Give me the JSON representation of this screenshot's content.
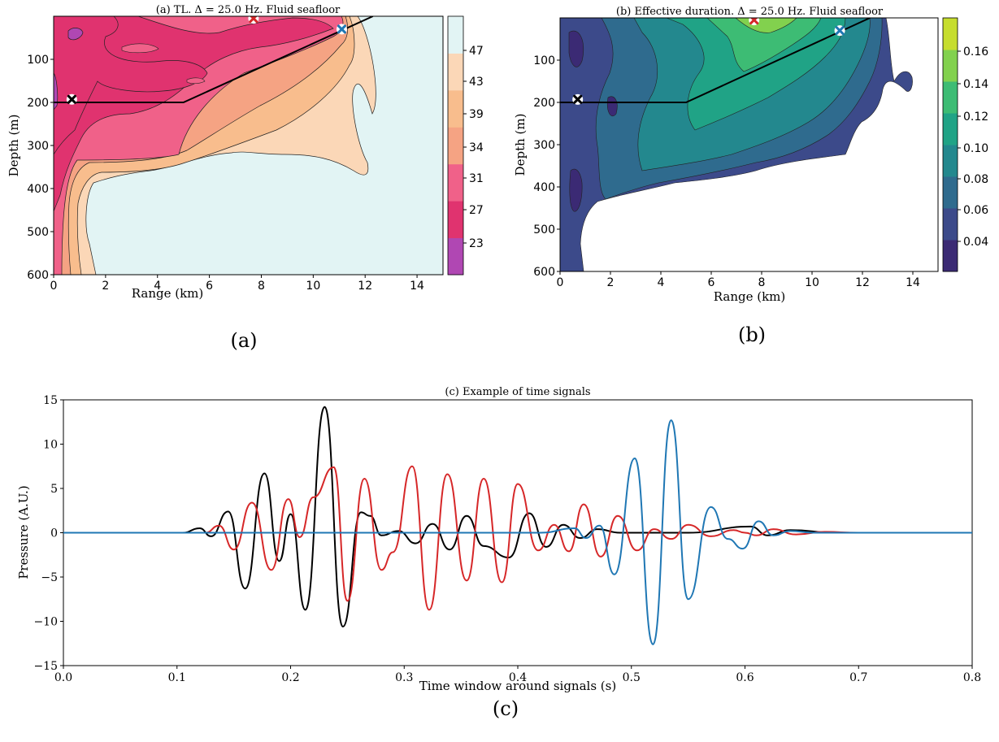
{
  "panels": {
    "a": {
      "title": "(a) TL. Δ = 25.0 Hz. Fluid seafloor",
      "caption": "(a)",
      "colorbar_ticks": [
        "47",
        "43",
        "39",
        "34",
        "31",
        "27",
        "23"
      ]
    },
    "b": {
      "title": "(b) Effective duration. Δ = 25.0 Hz. Fluid seafloor",
      "caption": "(b)",
      "colorbar_ticks": [
        "0.16",
        "0.14",
        "0.12",
        "0.10",
        "0.08",
        "0.06",
        "0.04"
      ]
    },
    "c": {
      "title": "(c) Example of time signals",
      "caption": "(c)"
    }
  },
  "chart_data": [
    {
      "type": "heatmap",
      "title": "(a) TL. Δ = 25.0 Hz. Fluid seafloor",
      "xlabel": "Range (km)",
      "ylabel": "Depth (m)",
      "xlim": [
        0,
        15
      ],
      "ylim": [
        600,
        0
      ],
      "xticks": [
        "0",
        "2",
        "4",
        "6",
        "8",
        "10",
        "12",
        "14"
      ],
      "yticks": [
        "100",
        "200",
        "300",
        "400",
        "500",
        "600"
      ],
      "colorbar": {
        "levels": [
          23,
          27,
          31,
          34,
          39,
          43,
          47
        ],
        "colors": [
          "#b047b3",
          "#e0336f",
          "#f06189",
          "#f5a383",
          "#f8bd8d",
          "#fbd7b7",
          "#e2f4f4"
        ]
      },
      "seafloor": {
        "x": [
          0,
          5,
          12.3
        ],
        "y": [
          200,
          200,
          0
        ]
      },
      "markers": [
        {
          "x": 0.7,
          "y": 193,
          "color": "#000000"
        },
        {
          "x": 7.7,
          "y": 5,
          "color": "#d62728"
        },
        {
          "x": 11.1,
          "y": 30,
          "color": "#1f77b4"
        }
      ]
    },
    {
      "type": "heatmap",
      "title": "(b) Effective duration. Δ = 25.0 Hz. Fluid seafloor",
      "xlabel": "Range (km)",
      "ylabel": "Depth (m)",
      "xlim": [
        0,
        15
      ],
      "ylim": [
        600,
        0
      ],
      "xticks": [
        "0",
        "2",
        "4",
        "6",
        "8",
        "10",
        "12",
        "14"
      ],
      "yticks": [
        "100",
        "200",
        "300",
        "400",
        "500",
        "600"
      ],
      "colorbar": {
        "levels": [
          0.04,
          0.06,
          0.08,
          0.1,
          0.12,
          0.14,
          0.16
        ],
        "colors": [
          "#3b2a74",
          "#3c4a8a",
          "#2f6b8e",
          "#23888e",
          "#20a386",
          "#3dbc74",
          "#82d14e",
          "#c6dd2e"
        ]
      },
      "seafloor": {
        "x": [
          0,
          5,
          12.3
        ],
        "y": [
          200,
          200,
          0
        ]
      },
      "markers": [
        {
          "x": 0.7,
          "y": 193,
          "color": "#000000"
        },
        {
          "x": 7.7,
          "y": 5,
          "color": "#d62728"
        },
        {
          "x": 11.1,
          "y": 30,
          "color": "#1f77b4"
        }
      ]
    },
    {
      "type": "line",
      "title": "(c) Example of time signals",
      "xlabel": "Time window around signals (s)",
      "ylabel": "Pressure (A.U.)",
      "xlim": [
        0,
        0.8
      ],
      "ylim": [
        -15,
        15
      ],
      "xticks": [
        "0.0",
        "0.1",
        "0.2",
        "0.3",
        "0.4",
        "0.5",
        "0.6",
        "0.7",
        "0.8"
      ],
      "yticks": [
        "15",
        "10",
        "5",
        "0",
        "−5",
        "−10",
        "−15"
      ],
      "series": [
        {
          "color": "#000000",
          "peaks": [
            [
              0.105,
              0
            ],
            [
              0.12,
              0.5
            ],
            [
              0.13,
              -0.4
            ],
            [
              0.145,
              2.4
            ],
            [
              0.16,
              -6.3
            ],
            [
              0.177,
              6.7
            ],
            [
              0.19,
              -3.2
            ],
            [
              0.2,
              2.1
            ],
            [
              0.213,
              -8.7
            ],
            [
              0.23,
              14.2
            ],
            [
              0.246,
              -10.6
            ],
            [
              0.262,
              2.3
            ],
            [
              0.27,
              1.9
            ],
            [
              0.28,
              -0.3
            ],
            [
              0.295,
              0.2
            ],
            [
              0.31,
              -1.2
            ],
            [
              0.325,
              1.0
            ],
            [
              0.34,
              -1.9
            ],
            [
              0.355,
              1.9
            ],
            [
              0.37,
              -1.5
            ],
            [
              0.392,
              -2.8
            ],
            [
              0.41,
              2.2
            ],
            [
              0.425,
              -1.6
            ],
            [
              0.44,
              0.9
            ],
            [
              0.455,
              -0.6
            ],
            [
              0.47,
              0.4
            ],
            [
              0.49,
              0.0
            ],
            [
              0.55,
              0.0
            ],
            [
              0.605,
              0.7
            ],
            [
              0.62,
              -0.3
            ],
            [
              0.64,
              0.3
            ],
            [
              0.68,
              0.0
            ],
            [
              0.8,
              0.0
            ]
          ]
        },
        {
          "color": "#d62728",
          "peaks": [
            [
              0.125,
              0
            ],
            [
              0.137,
              0.8
            ],
            [
              0.15,
              -1.9
            ],
            [
              0.166,
              3.4
            ],
            [
              0.183,
              -4.2
            ],
            [
              0.198,
              3.8
            ],
            [
              0.208,
              -0.5
            ],
            [
              0.22,
              4.0
            ],
            [
              0.238,
              7.4
            ],
            [
              0.25,
              -7.7
            ],
            [
              0.265,
              6.1
            ],
            [
              0.28,
              -4.2
            ],
            [
              0.29,
              -2.2
            ],
            [
              0.307,
              7.5
            ],
            [
              0.322,
              -8.7
            ],
            [
              0.338,
              6.6
            ],
            [
              0.355,
              -5.4
            ],
            [
              0.37,
              6.1
            ],
            [
              0.386,
              -5.6
            ],
            [
              0.4,
              5.5
            ],
            [
              0.418,
              -2.0
            ],
            [
              0.432,
              0.9
            ],
            [
              0.445,
              -2.1
            ],
            [
              0.458,
              3.2
            ],
            [
              0.473,
              -2.7
            ],
            [
              0.488,
              1.9
            ],
            [
              0.505,
              -2.0
            ],
            [
              0.52,
              0.4
            ],
            [
              0.535,
              -0.7
            ],
            [
              0.55,
              0.9
            ],
            [
              0.57,
              -0.4
            ],
            [
              0.59,
              0.3
            ],
            [
              0.6,
              0.0
            ],
            [
              0.61,
              -0.3
            ],
            [
              0.625,
              0.4
            ],
            [
              0.645,
              -0.2
            ],
            [
              0.67,
              0.1
            ],
            [
              0.7,
              0.0
            ],
            [
              0.8,
              0.0
            ]
          ]
        },
        {
          "color": "#1f77b4",
          "peaks": [
            [
              0.42,
              0
            ],
            [
              0.45,
              0.5
            ],
            [
              0.46,
              -0.6
            ],
            [
              0.472,
              0.8
            ],
            [
              0.485,
              -4.7
            ],
            [
              0.503,
              8.4
            ],
            [
              0.519,
              -12.6
            ],
            [
              0.535,
              12.7
            ],
            [
              0.55,
              -7.5
            ],
            [
              0.57,
              2.9
            ],
            [
              0.585,
              -0.7
            ],
            [
              0.598,
              -1.8
            ],
            [
              0.612,
              1.3
            ],
            [
              0.625,
              -0.3
            ],
            [
              0.64,
              0.2
            ],
            [
              0.66,
              0.0
            ],
            [
              0.8,
              0.0
            ]
          ]
        }
      ]
    }
  ]
}
